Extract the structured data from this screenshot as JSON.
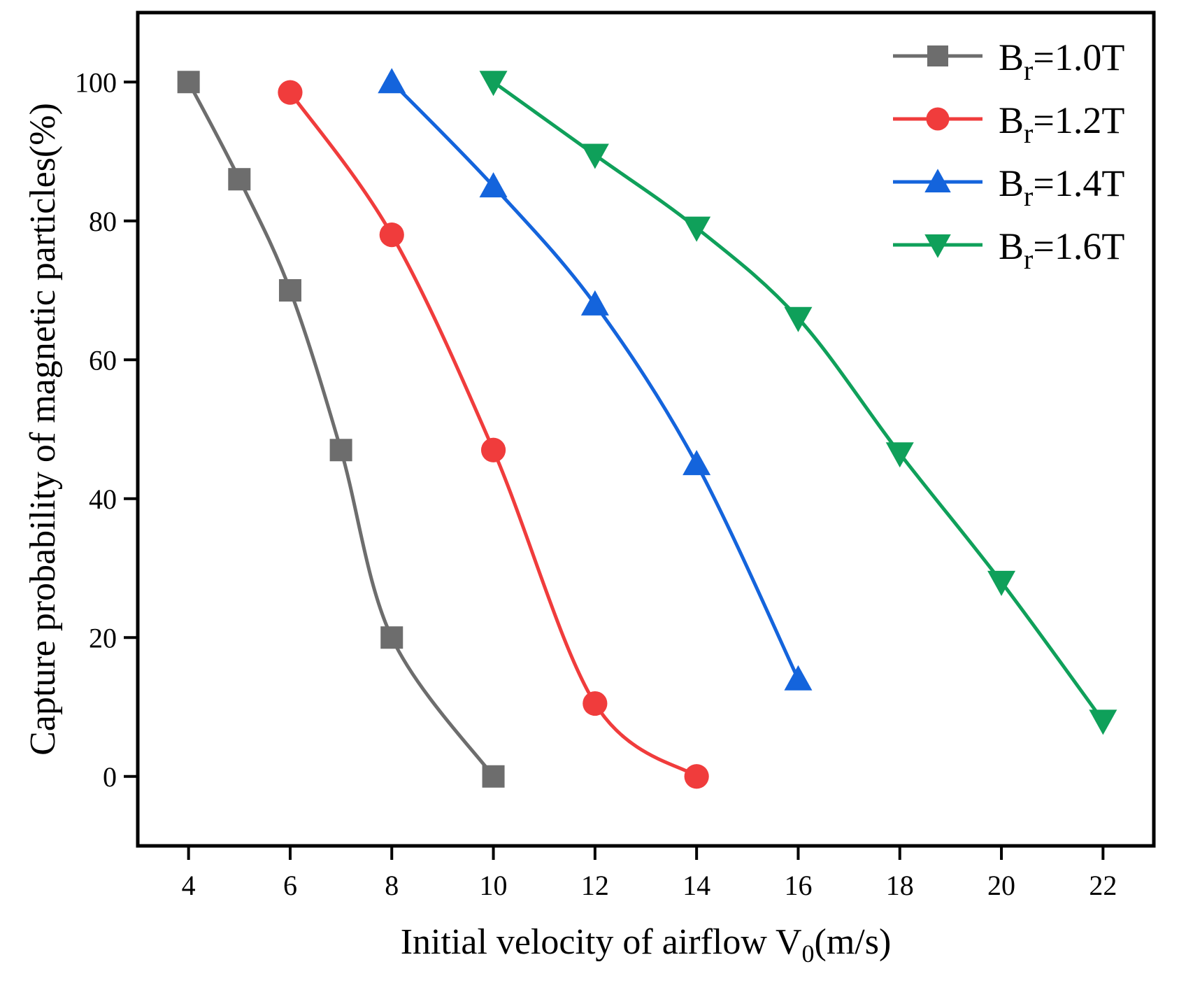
{
  "chart_data": {
    "type": "line",
    "title": "",
    "xlabel": "Initial velocity of airflow V",
    "xlabel_sub": "0",
    "xlabel_unit": "(m/s)",
    "ylabel": "Capture probability of magnetic particles(%)",
    "xlim": [
      3,
      23
    ],
    "ylim": [
      -10,
      110
    ],
    "xticks": [
      4,
      6,
      8,
      10,
      12,
      14,
      16,
      18,
      20,
      22
    ],
    "yticks": [
      0,
      20,
      40,
      60,
      80,
      100
    ],
    "grid": false,
    "legend_position": "top-right",
    "series": [
      {
        "name": "B",
        "sub": "r",
        "suffix": "=1.0T",
        "color": "#6d6d6d",
        "marker": "square",
        "x": [
          4,
          5,
          6,
          7,
          8,
          10
        ],
        "y": [
          100,
          86,
          70,
          47,
          20,
          0
        ]
      },
      {
        "name": "B",
        "sub": "r",
        "suffix": "=1.2T",
        "color": "#f03c3c",
        "marker": "circle",
        "x": [
          6,
          8,
          10,
          12,
          14
        ],
        "y": [
          98.5,
          78,
          47,
          10.5,
          0
        ]
      },
      {
        "name": "B",
        "sub": "r",
        "suffix": "=1.4T",
        "color": "#1464dc",
        "marker": "triangle-up",
        "x": [
          8,
          10,
          12,
          14,
          16
        ],
        "y": [
          100,
          85,
          68,
          45,
          14
        ]
      },
      {
        "name": "B",
        "sub": "r",
        "suffix": "=1.6T",
        "color": "#0fa05a",
        "marker": "triangle-down",
        "x": [
          10,
          12,
          14,
          16,
          18,
          20,
          22
        ],
        "y": [
          100,
          89.5,
          79,
          66,
          46.5,
          28,
          8
        ]
      }
    ]
  }
}
